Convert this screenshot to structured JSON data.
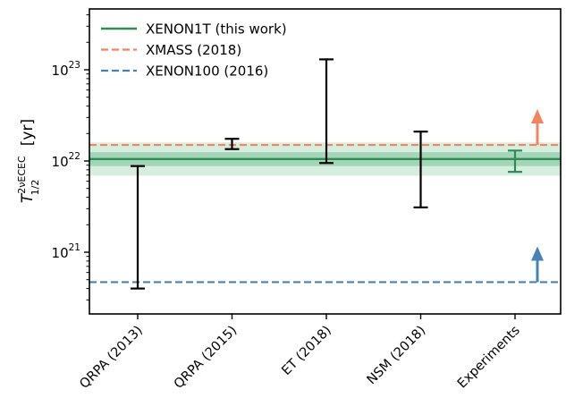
{
  "chart_data": {
    "type": "scatter",
    "yscale": "log",
    "ylabel_main": "T",
    "ylabel_sup": "2νECEC",
    "ylabel_sub": "1/2",
    "ylabel_unit": "[yr]",
    "ylim": [
      2e+20,
      5e+23
    ],
    "categories": [
      "QRPA (2013)",
      "QRPA (2015)",
      "ET (2018)",
      "NSM (2018)",
      "Experiments"
    ],
    "yticks": [
      {
        "value": 1e+21,
        "base": "10",
        "exp": "21"
      },
      {
        "value": 1e+22,
        "base": "10",
        "exp": "22"
      },
      {
        "value": 1e+23,
        "base": "10",
        "exp": "23"
      }
    ],
    "theory_ranges": [
      {
        "category": "QRPA (2013)",
        "low": 4e+20,
        "high": 8.8e+21
      },
      {
        "category": "QRPA (2015)",
        "low": 1.35e+22,
        "high": 1.75e+22
      },
      {
        "category": "ET (2018)",
        "low": 9.5e+21,
        "high": 1.3e+23
      },
      {
        "category": "NSM (2018)",
        "low": 3.1e+21,
        "high": 2.1e+22
      }
    ],
    "xenon1t": {
      "name": "XENON1T (this work)",
      "color": "#2e8b57",
      "value": 1.05e+22,
      "band_stat": [
        8.8e+21,
        1.25e+22
      ],
      "band_total": [
        6.9e+21,
        1.6e+22
      ],
      "errorbar": {
        "category": "Experiments",
        "low": 7.6e+21,
        "high": 1.3e+22
      }
    },
    "limits": [
      {
        "name": "XMASS (2018)",
        "value": 1.5e+22,
        "color": "#f4845f",
        "style": "dashed"
      },
      {
        "name": "XENON100 (2016)",
        "value": 4.7e+20,
        "color": "#4682b4",
        "style": "dashed"
      }
    ],
    "legend_position": "top-left",
    "grid": false
  }
}
